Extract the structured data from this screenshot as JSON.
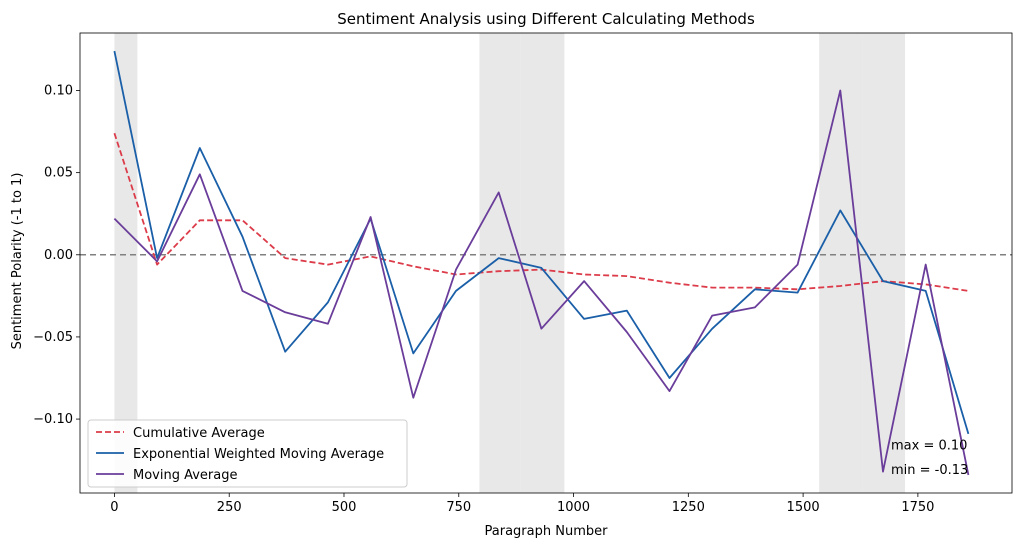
{
  "chart_data": {
    "type": "line",
    "title": "Sentiment Analysis using Different Calculating Methods",
    "xlabel": "Paragraph Number",
    "ylabel": "Sentiment Polarity (-1 to 1)",
    "xlim": [
      -75,
      1955
    ],
    "ylim": [
      -0.145,
      0.135
    ],
    "xticks": [
      0,
      250,
      500,
      750,
      1000,
      1250,
      1500,
      1750
    ],
    "yticks": [
      -0.1,
      -0.05,
      0.0,
      0.05,
      0.1
    ],
    "xtick_labels": [
      "0",
      "250",
      "500",
      "750",
      "1000",
      "1250",
      "1500",
      "1750"
    ],
    "ytick_labels": [
      "−0.10",
      "−0.05",
      "0.00",
      "0.05",
      "0.10"
    ],
    "reference_line": {
      "y": 0,
      "style": "dashed",
      "color": "#808080"
    },
    "shaded_regions": [
      {
        "x0": 0,
        "x1": 50
      },
      {
        "x0": 795,
        "x1": 885
      },
      {
        "x0": 885,
        "x1": 980
      },
      {
        "x0": 1535,
        "x1": 1630
      },
      {
        "x0": 1630,
        "x1": 1722
      }
    ],
    "x": [
      0,
      93,
      186,
      279,
      372,
      465,
      558,
      651,
      744,
      837,
      930,
      1023,
      1116,
      1209,
      1302,
      1395,
      1488,
      1581,
      1674,
      1767,
      1860
    ],
    "series": [
      {
        "name": "Cumulative Average",
        "style": "dashed",
        "color": "#dc3c4a",
        "values": [
          0.074,
          -0.006,
          0.021,
          0.021,
          -0.002,
          -0.006,
          -0.001,
          -0.007,
          -0.012,
          -0.01,
          -0.009,
          -0.012,
          -0.013,
          -0.017,
          -0.02,
          -0.02,
          -0.021,
          -0.019,
          -0.016,
          -0.018,
          -0.022
        ]
      },
      {
        "name": "Exponential Weighted Moving Average",
        "style": "solid",
        "color": "#1a5fa8",
        "values": [
          0.124,
          -0.002,
          0.065,
          0.011,
          -0.059,
          -0.029,
          0.022,
          -0.06,
          -0.022,
          -0.002,
          -0.008,
          -0.039,
          -0.034,
          -0.075,
          -0.045,
          -0.021,
          -0.023,
          0.027,
          -0.016,
          -0.022,
          -0.109
        ]
      },
      {
        "name": "Moving Average",
        "style": "solid",
        "color": "#6a3d9a",
        "values": [
          0.022,
          -0.004,
          0.049,
          -0.022,
          -0.035,
          -0.042,
          0.023,
          -0.087,
          -0.009,
          0.038,
          -0.045,
          -0.016,
          -0.047,
          -0.083,
          -0.037,
          -0.032,
          -0.006,
          0.1,
          -0.132,
          -0.006,
          -0.134
        ]
      }
    ],
    "annotations": [
      {
        "text": "max = 0.10",
        "x": 1674,
        "y": -0.116
      },
      {
        "text": "min = -0.13",
        "x": 1674,
        "y": -0.131
      }
    ],
    "legend_position": "lower-left",
    "grid": false
  }
}
